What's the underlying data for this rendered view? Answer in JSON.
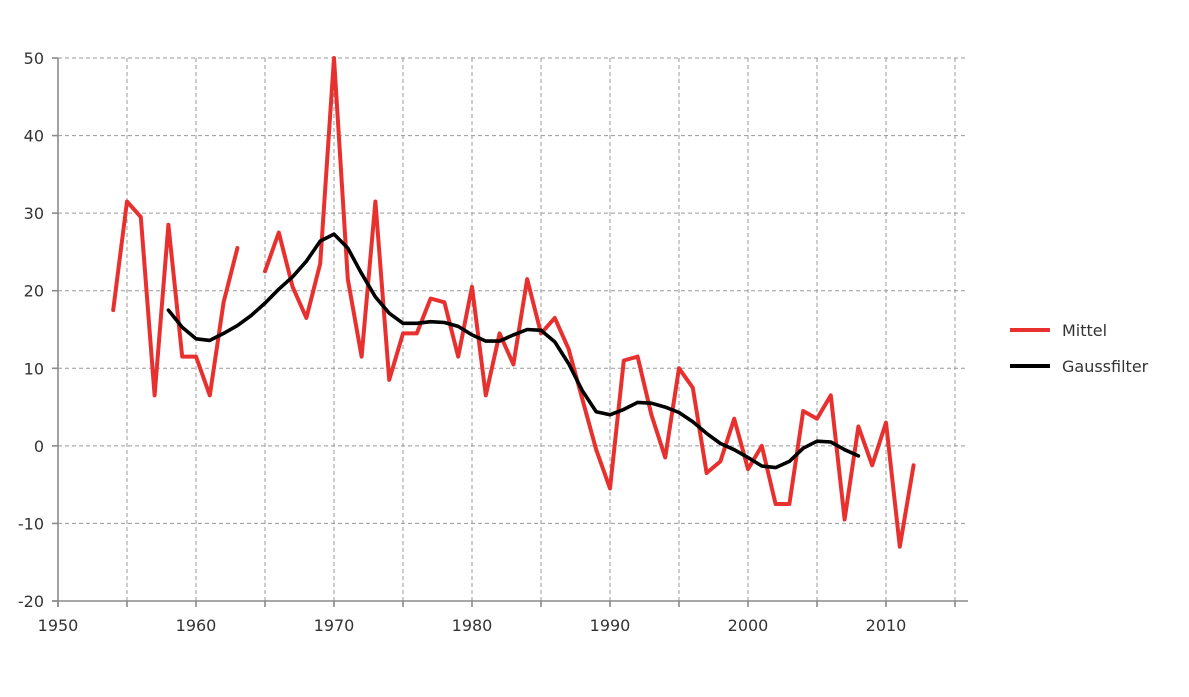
{
  "chart_data": {
    "type": "line",
    "title": "",
    "xlabel": "",
    "ylabel": "",
    "xlim": [
      1950,
      2015
    ],
    "ylim": [
      -20,
      50
    ],
    "xticks": [
      1950,
      1960,
      1970,
      1980,
      1990,
      2000,
      2010
    ],
    "yticks": [
      -20,
      -10,
      0,
      10,
      20,
      30,
      40,
      50
    ],
    "grid": true,
    "legend_position": "right",
    "series": [
      {
        "name": "Mittel",
        "color": "#e8312f",
        "x": [
          1954,
          1955,
          1956,
          1957,
          1958,
          1959,
          1960,
          1961,
          1962,
          1963,
          1964,
          1965,
          1966,
          1967,
          1968,
          1969,
          1970,
          1971,
          1972,
          1973,
          1974,
          1975,
          1976,
          1977,
          1978,
          1979,
          1980,
          1981,
          1982,
          1983,
          1984,
          1985,
          1986,
          1987,
          1988,
          1989,
          1990,
          1991,
          1992,
          1993,
          1994,
          1995,
          1996,
          1997,
          1998,
          1999,
          2000,
          2001,
          2002,
          2003,
          2004,
          2005,
          2006,
          2007,
          2008,
          2009,
          2010,
          2011,
          2012
        ],
        "y": [
          17.5,
          31.5,
          29.5,
          6.5,
          28.5,
          11.5,
          11.5,
          6.5,
          18.5,
          25.5,
          null,
          22.5,
          27.5,
          20.5,
          16.5,
          23.5,
          50,
          21.5,
          11.5,
          31.5,
          8.5,
          14.5,
          14.5,
          19,
          18.5,
          11.5,
          20.5,
          6.5,
          14.5,
          10.5,
          21.5,
          14.5,
          16.5,
          12.5,
          6,
          -0.5,
          -5.5,
          11,
          11.5,
          4,
          -1.5,
          10,
          7.5,
          -3.5,
          -2,
          3.5,
          -3,
          0,
          -7.5,
          -7.5,
          4.5,
          3.5,
          6.5,
          -9.5,
          2.5,
          -2.5,
          3,
          -13,
          -2.5
        ]
      },
      {
        "name": "Gaussfilter",
        "color": "#000000",
        "x": [
          1958,
          1959,
          1960,
          1961,
          1962,
          1963,
          1964,
          1965,
          1966,
          1967,
          1968,
          1969,
          1970,
          1971,
          1972,
          1973,
          1974,
          1975,
          1976,
          1977,
          1978,
          1979,
          1980,
          1981,
          1982,
          1983,
          1984,
          1985,
          1986,
          1987,
          1988,
          1989,
          1990,
          1991,
          1992,
          1993,
          1994,
          1995,
          1996,
          1997,
          1998,
          1999,
          2000,
          2001,
          2002,
          2003,
          2004,
          2005,
          2006,
          2007,
          2008
        ],
        "y": [
          17.5,
          15.3,
          13.8,
          13.6,
          14.5,
          15.5,
          16.8,
          18.4,
          20.2,
          21.8,
          23.8,
          26.4,
          27.3,
          25.5,
          22.2,
          19.2,
          17.1,
          15.8,
          15.8,
          16,
          15.9,
          15.4,
          14.3,
          13.5,
          13.5,
          14.3,
          15,
          14.9,
          13.4,
          10.6,
          7.1,
          4.4,
          4,
          4.7,
          5.6,
          5.5,
          5,
          4.3,
          3.1,
          1.6,
          0.3,
          -0.5,
          -1.5,
          -2.6,
          -2.8,
          -2,
          -0.3,
          0.6,
          0.5,
          -0.5,
          -1.3
        ]
      }
    ]
  }
}
